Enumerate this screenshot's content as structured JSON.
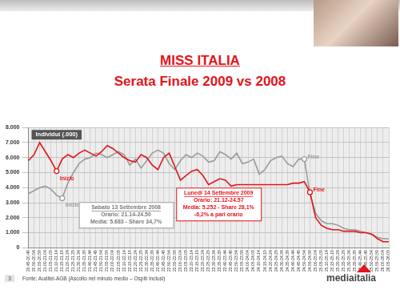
{
  "header": {
    "title": "MISS ITALIA",
    "subtitle": "Serata Finale 2009 vs 2008"
  },
  "chart_data": {
    "type": "line",
    "y_label": "Individui (.000)",
    "categories": [
      "20.45-20.49",
      "20.50-20.54",
      "20.55-20.59",
      "21.00-21.04",
      "21.05-21.09",
      "21.10-21.14",
      "21.15-21.19",
      "21.20-21.24",
      "21.25-21.29",
      "21.30-21.34",
      "21.35-21.39",
      "21.40-21.44",
      "21.45-21.49",
      "21.50-21.54",
      "21.55-21.59",
      "22.00-22.04",
      "22.05-22.09",
      "22.10-22.14",
      "22.15-22.19",
      "22.20-22.24",
      "22.25-22.29",
      "22.30-22.34",
      "22.35-22.39",
      "22.40-22.44",
      "22.45-22.49",
      "22.50-22.54",
      "22.55-22.59",
      "23.00-23.04",
      "23.05-23.09",
      "23.10-23.14",
      "23.15-23.19",
      "23.20-23.24",
      "23.25-23.29",
      "23.30-23.34",
      "23.35-23.39",
      "23.40-23.44",
      "23.45-23.49",
      "23.50-23.54",
      "23.55-23.59",
      "24.00-24.04",
      "24.05-24.09",
      "24.10-24.14",
      "24.15-24.19",
      "24.20-24.24",
      "24.25-24.29",
      "24.30-24.34",
      "24.35-24.39",
      "24.40-24.44",
      "24.45-24.49",
      "24.50-24.54",
      "24.55-24.59",
      "25.00-25.04",
      "25.05-25.09",
      "25.10-25.14",
      "25.15-25.19",
      "25.20-25.24",
      "25.25-25.29",
      "25.30-25.34",
      "25.35-25.39",
      "25.40-25.44",
      "25.45-25.49",
      "25.50-25.54",
      "25.55-25.59",
      "26.00-26.04",
      "26.05-26.09"
    ],
    "series": [
      {
        "name": "Sabato 13 Settembre 2008",
        "color": "#9b9b9b",
        "notes": [
          "Orario: 21.14-24.50",
          "Media: 5.683 - Share 34,7%"
        ],
        "values": [
          3600,
          3800,
          4000,
          4100,
          3900,
          3500,
          3300,
          4300,
          5000,
          5600,
          5900,
          6000,
          6300,
          6200,
          6000,
          6200,
          6400,
          6200,
          5500,
          5900,
          5300,
          5800,
          6300,
          6500,
          6300,
          5600,
          5200,
          5800,
          6200,
          6000,
          6300,
          6100,
          5700,
          5800,
          6400,
          6200,
          5900,
          6300,
          5600,
          5700,
          5900,
          4900,
          5200,
          5800,
          6000,
          6100,
          5600,
          5400,
          5900,
          5900,
          3600,
          2300,
          1800,
          1600,
          1600,
          1500,
          1300,
          1200,
          1200,
          1100,
          1000,
          900,
          700,
          600,
          600
        ]
      },
      {
        "name": "Lunedì 14 Settembre 2009",
        "color": "#e3141b",
        "notes": [
          "Orario: 21.12-24.57",
          "Media: 5.252 - Share 28,1%",
          "-6,2% a pari orario"
        ],
        "values": [
          5800,
          6200,
          7000,
          6400,
          5800,
          5100,
          5900,
          6200,
          6000,
          6300,
          6500,
          6300,
          6100,
          6400,
          6800,
          6600,
          6300,
          6000,
          5800,
          5700,
          6200,
          6000,
          5500,
          5200,
          6000,
          6300,
          5400,
          4500,
          4800,
          5100,
          5200,
          4800,
          4200,
          4400,
          4600,
          4500,
          4100,
          4200,
          4200,
          4200,
          4200,
          4200,
          4200,
          4200,
          4200,
          4200,
          4200,
          4300,
          4300,
          4400,
          3700,
          2000,
          1500,
          1300,
          1200,
          1200,
          1100,
          1100,
          1100,
          1000,
          1000,
          900,
          600,
          400,
          400
        ]
      }
    ],
    "annotations": [
      {
        "text": "Inizio",
        "series": 0,
        "x": "21.15-21.19"
      },
      {
        "text": "Fine",
        "series": 0,
        "x": "24.50-24.54"
      },
      {
        "text": "Inizio",
        "series": 1,
        "x": "21.10-21.14"
      },
      {
        "text": "Fine",
        "series": 1,
        "x": "24.55-24.59"
      }
    ],
    "ylim": [
      0,
      8000
    ],
    "yticks": [
      0,
      {
        "value": 1000,
        "label": "1.000"
      },
      {
        "value": 2000,
        "label": "2.000"
      },
      {
        "value": 3000,
        "label": "3.000"
      },
      {
        "value": 4000,
        "label": "4.000"
      },
      {
        "value": 5000,
        "label": "5.000"
      },
      {
        "value": 6000,
        "label": "6.000"
      },
      {
        "value": 7000,
        "label": "7.000"
      },
      {
        "value": 8000,
        "label": "8.000"
      }
    ],
    "grid": true
  },
  "footer": {
    "page": "3",
    "source": "Fonte: Auditel-AGB (Ascolto nel minuto medio – Ospiti Inclusi)",
    "logo": "mediaitalia"
  }
}
